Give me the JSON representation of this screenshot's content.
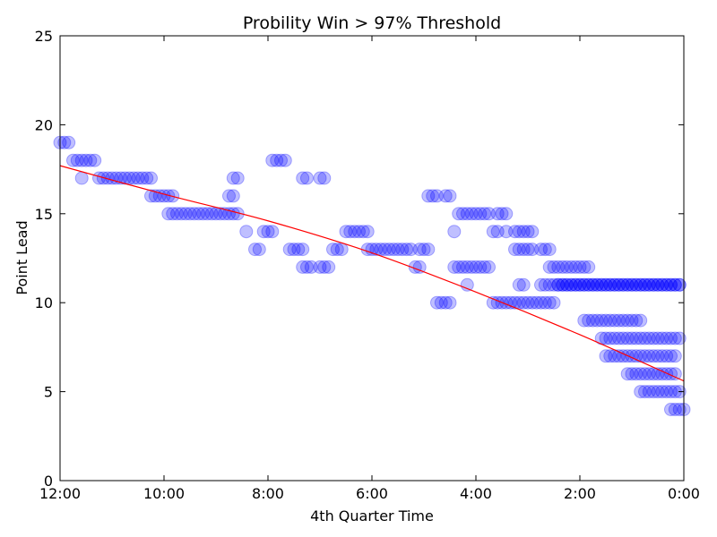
{
  "chart_data": {
    "type": "scatter",
    "title": "Probility Win > 97% Threshold",
    "xlabel": "4th Quarter Time",
    "ylabel": "Point Lead",
    "xlim": [
      "12:00",
      "0:00"
    ],
    "ylim": [
      0,
      25
    ],
    "x_ticks": [
      "12:00",
      "10:00",
      "8:00",
      "6:00",
      "4:00",
      "2:00",
      "0:00"
    ],
    "y_ticks": [
      0,
      5,
      10,
      15,
      20,
      25
    ],
    "grid": false,
    "colors": {
      "points": "#0000ff",
      "fit": "#ff0000",
      "axes": "#000000"
    },
    "series": [
      {
        "kind": "scatter",
        "points": [
          [
            "12:00",
            19
          ],
          [
            "11:55",
            19
          ],
          [
            "11:50",
            19
          ],
          [
            "11:45",
            18
          ],
          [
            "11:40",
            18
          ],
          [
            "11:35",
            18
          ],
          [
            "11:30",
            18
          ],
          [
            "11:25",
            18
          ],
          [
            "11:20",
            18
          ],
          [
            "11:35",
            17
          ],
          [
            "11:15",
            17
          ],
          [
            "11:10",
            17
          ],
          [
            "11:05",
            17
          ],
          [
            "11:00",
            17
          ],
          [
            "10:55",
            17
          ],
          [
            "10:50",
            17
          ],
          [
            "10:45",
            17
          ],
          [
            "10:40",
            17
          ],
          [
            "10:35",
            17
          ],
          [
            "10:30",
            17
          ],
          [
            "10:25",
            17
          ],
          [
            "10:20",
            17
          ],
          [
            "10:15",
            17
          ],
          [
            "10:15",
            16
          ],
          [
            "10:10",
            16
          ],
          [
            "10:05",
            16
          ],
          [
            "10:00",
            16
          ],
          [
            "9:55",
            16
          ],
          [
            "9:50",
            16
          ],
          [
            "9:55",
            15
          ],
          [
            "9:50",
            15
          ],
          [
            "9:45",
            15
          ],
          [
            "9:40",
            15
          ],
          [
            "9:35",
            15
          ],
          [
            "9:30",
            15
          ],
          [
            "9:25",
            15
          ],
          [
            "9:20",
            15
          ],
          [
            "9:15",
            15
          ],
          [
            "9:10",
            15
          ],
          [
            "9:05",
            15
          ],
          [
            "9:00",
            15
          ],
          [
            "8:55",
            15
          ],
          [
            "8:50",
            15
          ],
          [
            "8:45",
            15
          ],
          [
            "8:40",
            15
          ],
          [
            "8:45",
            16
          ],
          [
            "8:40",
            16
          ],
          [
            "8:40",
            17
          ],
          [
            "8:35",
            17
          ],
          [
            "8:35",
            15
          ],
          [
            "8:25",
            14
          ],
          [
            "8:15",
            13
          ],
          [
            "8:10",
            13
          ],
          [
            "8:05",
            14
          ],
          [
            "8:00",
            14
          ],
          [
            "7:55",
            14
          ],
          [
            "7:55",
            18
          ],
          [
            "7:50",
            18
          ],
          [
            "7:45",
            18
          ],
          [
            "7:40",
            18
          ],
          [
            "7:35",
            13
          ],
          [
            "7:30",
            13
          ],
          [
            "7:25",
            13
          ],
          [
            "7:20",
            13
          ],
          [
            "7:20",
            12
          ],
          [
            "7:15",
            12
          ],
          [
            "7:10",
            12
          ],
          [
            "7:20",
            17
          ],
          [
            "7:15",
            17
          ],
          [
            "7:00",
            17
          ],
          [
            "6:55",
            17
          ],
          [
            "7:00",
            12
          ],
          [
            "6:55",
            12
          ],
          [
            "6:50",
            12
          ],
          [
            "6:45",
            13
          ],
          [
            "6:40",
            13
          ],
          [
            "6:35",
            13
          ],
          [
            "6:30",
            14
          ],
          [
            "6:25",
            14
          ],
          [
            "6:20",
            14
          ],
          [
            "6:15",
            14
          ],
          [
            "6:10",
            14
          ],
          [
            "6:05",
            14
          ],
          [
            "6:05",
            13
          ],
          [
            "6:00",
            13
          ],
          [
            "5:55",
            13
          ],
          [
            "5:50",
            13
          ],
          [
            "5:45",
            13
          ],
          [
            "5:40",
            13
          ],
          [
            "5:35",
            13
          ],
          [
            "5:30",
            13
          ],
          [
            "5:25",
            13
          ],
          [
            "5:20",
            13
          ],
          [
            "5:15",
            13
          ],
          [
            "5:05",
            13
          ],
          [
            "5:00",
            13
          ],
          [
            "4:55",
            13
          ],
          [
            "5:10",
            12
          ],
          [
            "5:05",
            12
          ],
          [
            "4:55",
            16
          ],
          [
            "4:50",
            16
          ],
          [
            "4:45",
            16
          ],
          [
            "4:35",
            16
          ],
          [
            "4:30",
            16
          ],
          [
            "4:45",
            10
          ],
          [
            "4:40",
            10
          ],
          [
            "4:35",
            10
          ],
          [
            "4:30",
            10
          ],
          [
            "4:20",
            15
          ],
          [
            "4:15",
            15
          ],
          [
            "4:10",
            15
          ],
          [
            "4:05",
            15
          ],
          [
            "4:00",
            15
          ],
          [
            "3:55",
            15
          ],
          [
            "3:50",
            15
          ],
          [
            "3:45",
            15
          ],
          [
            "3:35",
            15
          ],
          [
            "3:30",
            15
          ],
          [
            "3:25",
            15
          ],
          [
            "4:25",
            14
          ],
          [
            "3:40",
            14
          ],
          [
            "3:35",
            14
          ],
          [
            "3:25",
            14
          ],
          [
            "3:15",
            14
          ],
          [
            "3:10",
            14
          ],
          [
            "3:05",
            14
          ],
          [
            "3:00",
            14
          ],
          [
            "2:55",
            14
          ],
          [
            "4:10",
            11
          ],
          [
            "3:15",
            13
          ],
          [
            "3:10",
            13
          ],
          [
            "3:05",
            13
          ],
          [
            "3:00",
            13
          ],
          [
            "2:55",
            13
          ],
          [
            "2:45",
            13
          ],
          [
            "2:40",
            13
          ],
          [
            "2:35",
            13
          ],
          [
            "2:45",
            11
          ],
          [
            "2:40",
            11
          ],
          [
            "2:35",
            11
          ],
          [
            "2:30",
            11
          ],
          [
            "2:25",
            11
          ],
          [
            "2:20",
            11
          ],
          [
            "2:15",
            11
          ],
          [
            "2:10",
            11
          ],
          [
            "2:05",
            11
          ],
          [
            "2:00",
            11
          ],
          [
            "1:55",
            11
          ],
          [
            "1:50",
            11
          ],
          [
            "1:45",
            11
          ],
          [
            "1:40",
            11
          ],
          [
            "1:35",
            11
          ],
          [
            "1:30",
            11
          ],
          [
            "1:25",
            11
          ],
          [
            "1:20",
            11
          ],
          [
            "1:15",
            11
          ],
          [
            "1:10",
            11
          ],
          [
            "1:05",
            11
          ],
          [
            "1:00",
            11
          ],
          [
            "0:55",
            11
          ],
          [
            "0:50",
            11
          ],
          [
            "0:45",
            11
          ],
          [
            "0:40",
            11
          ],
          [
            "0:35",
            11
          ],
          [
            "0:30",
            11
          ],
          [
            "0:25",
            11
          ],
          [
            "0:20",
            11
          ],
          [
            "0:15",
            11
          ],
          [
            "0:10",
            11
          ],
          [
            "0:05",
            11
          ],
          [
            "3:10",
            11
          ],
          [
            "3:05",
            11
          ],
          [
            "2:25",
            11
          ],
          [
            "2:20",
            11
          ],
          [
            "2:15",
            11
          ],
          [
            "2:10",
            11
          ],
          [
            "2:05",
            11
          ],
          [
            "2:00",
            11
          ],
          [
            "1:55",
            11
          ],
          [
            "1:50",
            11
          ],
          [
            "1:45",
            11
          ],
          [
            "1:40",
            11
          ],
          [
            "1:35",
            11
          ],
          [
            "1:30",
            11
          ],
          [
            "1:25",
            11
          ],
          [
            "1:20",
            11
          ],
          [
            "1:15",
            11
          ],
          [
            "1:10",
            11
          ],
          [
            "1:05",
            11
          ],
          [
            "1:00",
            11
          ],
          [
            "0:55",
            11
          ],
          [
            "0:50",
            11
          ],
          [
            "0:45",
            11
          ],
          [
            "0:40",
            11
          ],
          [
            "0:35",
            11
          ],
          [
            "0:30",
            11
          ],
          [
            "0:25",
            11
          ],
          [
            "0:20",
            11
          ],
          [
            "0:15",
            11
          ],
          [
            "0:10",
            11
          ],
          [
            "0:05",
            11
          ],
          [
            "4:25",
            12
          ],
          [
            "4:20",
            12
          ],
          [
            "4:15",
            12
          ],
          [
            "4:10",
            12
          ],
          [
            "4:05",
            12
          ],
          [
            "4:00",
            12
          ],
          [
            "3:55",
            12
          ],
          [
            "3:50",
            12
          ],
          [
            "3:45",
            12
          ],
          [
            "3:40",
            10
          ],
          [
            "3:35",
            10
          ],
          [
            "3:30",
            10
          ],
          [
            "3:25",
            10
          ],
          [
            "3:20",
            10
          ],
          [
            "3:15",
            10
          ],
          [
            "3:10",
            10
          ],
          [
            "3:05",
            10
          ],
          [
            "3:00",
            10
          ],
          [
            "2:55",
            10
          ],
          [
            "2:50",
            10
          ],
          [
            "2:45",
            10
          ],
          [
            "2:40",
            10
          ],
          [
            "2:35",
            10
          ],
          [
            "2:30",
            10
          ],
          [
            "2:35",
            12
          ],
          [
            "2:30",
            12
          ],
          [
            "2:25",
            12
          ],
          [
            "2:20",
            12
          ],
          [
            "2:15",
            12
          ],
          [
            "2:10",
            12
          ],
          [
            "2:05",
            12
          ],
          [
            "2:00",
            12
          ],
          [
            "1:55",
            12
          ],
          [
            "1:50",
            12
          ],
          [
            "1:55",
            9
          ],
          [
            "1:50",
            9
          ],
          [
            "1:45",
            9
          ],
          [
            "1:40",
            9
          ],
          [
            "1:35",
            9
          ],
          [
            "1:30",
            9
          ],
          [
            "1:25",
            9
          ],
          [
            "1:20",
            9
          ],
          [
            "1:15",
            9
          ],
          [
            "1:10",
            9
          ],
          [
            "1:05",
            9
          ],
          [
            "1:00",
            9
          ],
          [
            "0:55",
            9
          ],
          [
            "0:50",
            9
          ],
          [
            "1:35",
            8
          ],
          [
            "1:30",
            8
          ],
          [
            "1:25",
            8
          ],
          [
            "1:20",
            8
          ],
          [
            "1:15",
            8
          ],
          [
            "1:10",
            8
          ],
          [
            "1:05",
            8
          ],
          [
            "1:00",
            8
          ],
          [
            "0:55",
            8
          ],
          [
            "0:50",
            8
          ],
          [
            "0:45",
            8
          ],
          [
            "0:40",
            8
          ],
          [
            "0:35",
            8
          ],
          [
            "0:30",
            8
          ],
          [
            "0:25",
            8
          ],
          [
            "0:20",
            8
          ],
          [
            "0:15",
            8
          ],
          [
            "0:10",
            8
          ],
          [
            "0:05",
            8
          ],
          [
            "1:30",
            7
          ],
          [
            "1:25",
            7
          ],
          [
            "1:20",
            7
          ],
          [
            "1:15",
            7
          ],
          [
            "1:10",
            7
          ],
          [
            "1:05",
            7
          ],
          [
            "1:00",
            7
          ],
          [
            "0:55",
            7
          ],
          [
            "0:50",
            7
          ],
          [
            "0:45",
            7
          ],
          [
            "0:40",
            7
          ],
          [
            "0:35",
            7
          ],
          [
            "0:30",
            7
          ],
          [
            "0:25",
            7
          ],
          [
            "0:20",
            7
          ],
          [
            "0:15",
            7
          ],
          [
            "0:10",
            7
          ],
          [
            "1:05",
            6
          ],
          [
            "1:00",
            6
          ],
          [
            "0:55",
            6
          ],
          [
            "0:50",
            6
          ],
          [
            "0:45",
            6
          ],
          [
            "0:40",
            6
          ],
          [
            "0:35",
            6
          ],
          [
            "0:30",
            6
          ],
          [
            "0:25",
            6
          ],
          [
            "0:20",
            6
          ],
          [
            "0:15",
            6
          ],
          [
            "0:10",
            6
          ],
          [
            "0:50",
            5
          ],
          [
            "0:45",
            5
          ],
          [
            "0:40",
            5
          ],
          [
            "0:35",
            5
          ],
          [
            "0:30",
            5
          ],
          [
            "0:25",
            5
          ],
          [
            "0:20",
            5
          ],
          [
            "0:15",
            5
          ],
          [
            "0:10",
            5
          ],
          [
            "0:05",
            5
          ],
          [
            "0:15",
            4
          ],
          [
            "0:10",
            4
          ],
          [
            "0:05",
            4
          ],
          [
            "0:00",
            4
          ]
        ]
      },
      {
        "kind": "line",
        "x": [
          "12:00",
          "10:00",
          "8:00",
          "6:00",
          "4:00",
          "2:00",
          "0:00"
        ],
        "y": [
          17.7,
          16.1,
          14.6,
          12.8,
          10.6,
          8.2,
          5.6
        ]
      }
    ]
  }
}
